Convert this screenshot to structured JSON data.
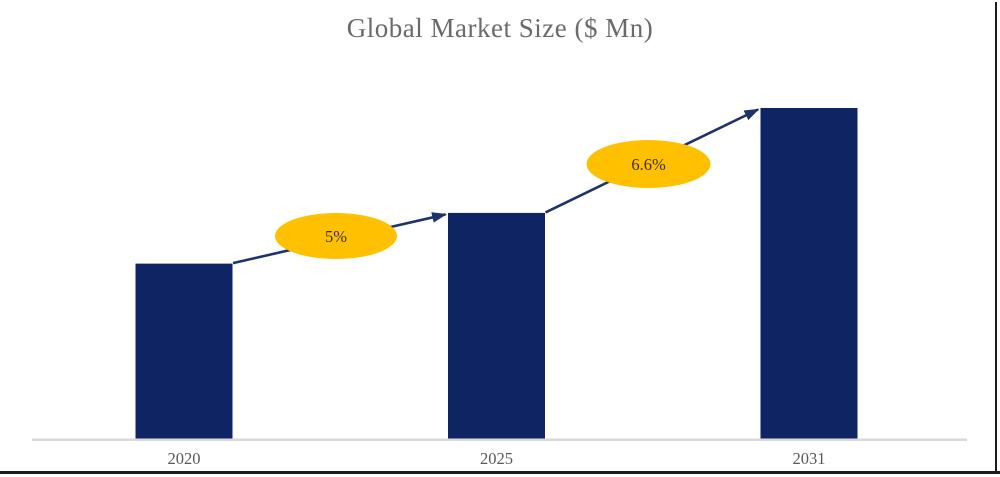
{
  "chart_data": {
    "type": "bar",
    "title": "Global Market Size ($ Mn)",
    "xlabel": "",
    "ylabel": "",
    "categories": [
      "2020",
      "2025",
      "2031"
    ],
    "series": [
      {
        "name": "Global Market Size ($ Mn)",
        "values_relative_index": [
          100,
          129,
          189
        ]
      }
    ],
    "value_axis_visible": false,
    "gridlines": false,
    "legend": "none",
    "annotations": [
      {
        "label": "5%",
        "from": "2020",
        "to": "2025",
        "shape": "ellipse"
      },
      {
        "label": "6.6%",
        "from": "2025",
        "to": "2031",
        "shape": "ellipse"
      }
    ],
    "colors": {
      "bar": "#0e2463",
      "arrow": "#1e3468",
      "annotation_fill": "#ffc000",
      "annotation_text": "#3a3113",
      "axis_line": "#d9d9d9",
      "category_label": "#595959",
      "title": "#6a6a6a",
      "frame_border": "#1b1b1b"
    }
  }
}
